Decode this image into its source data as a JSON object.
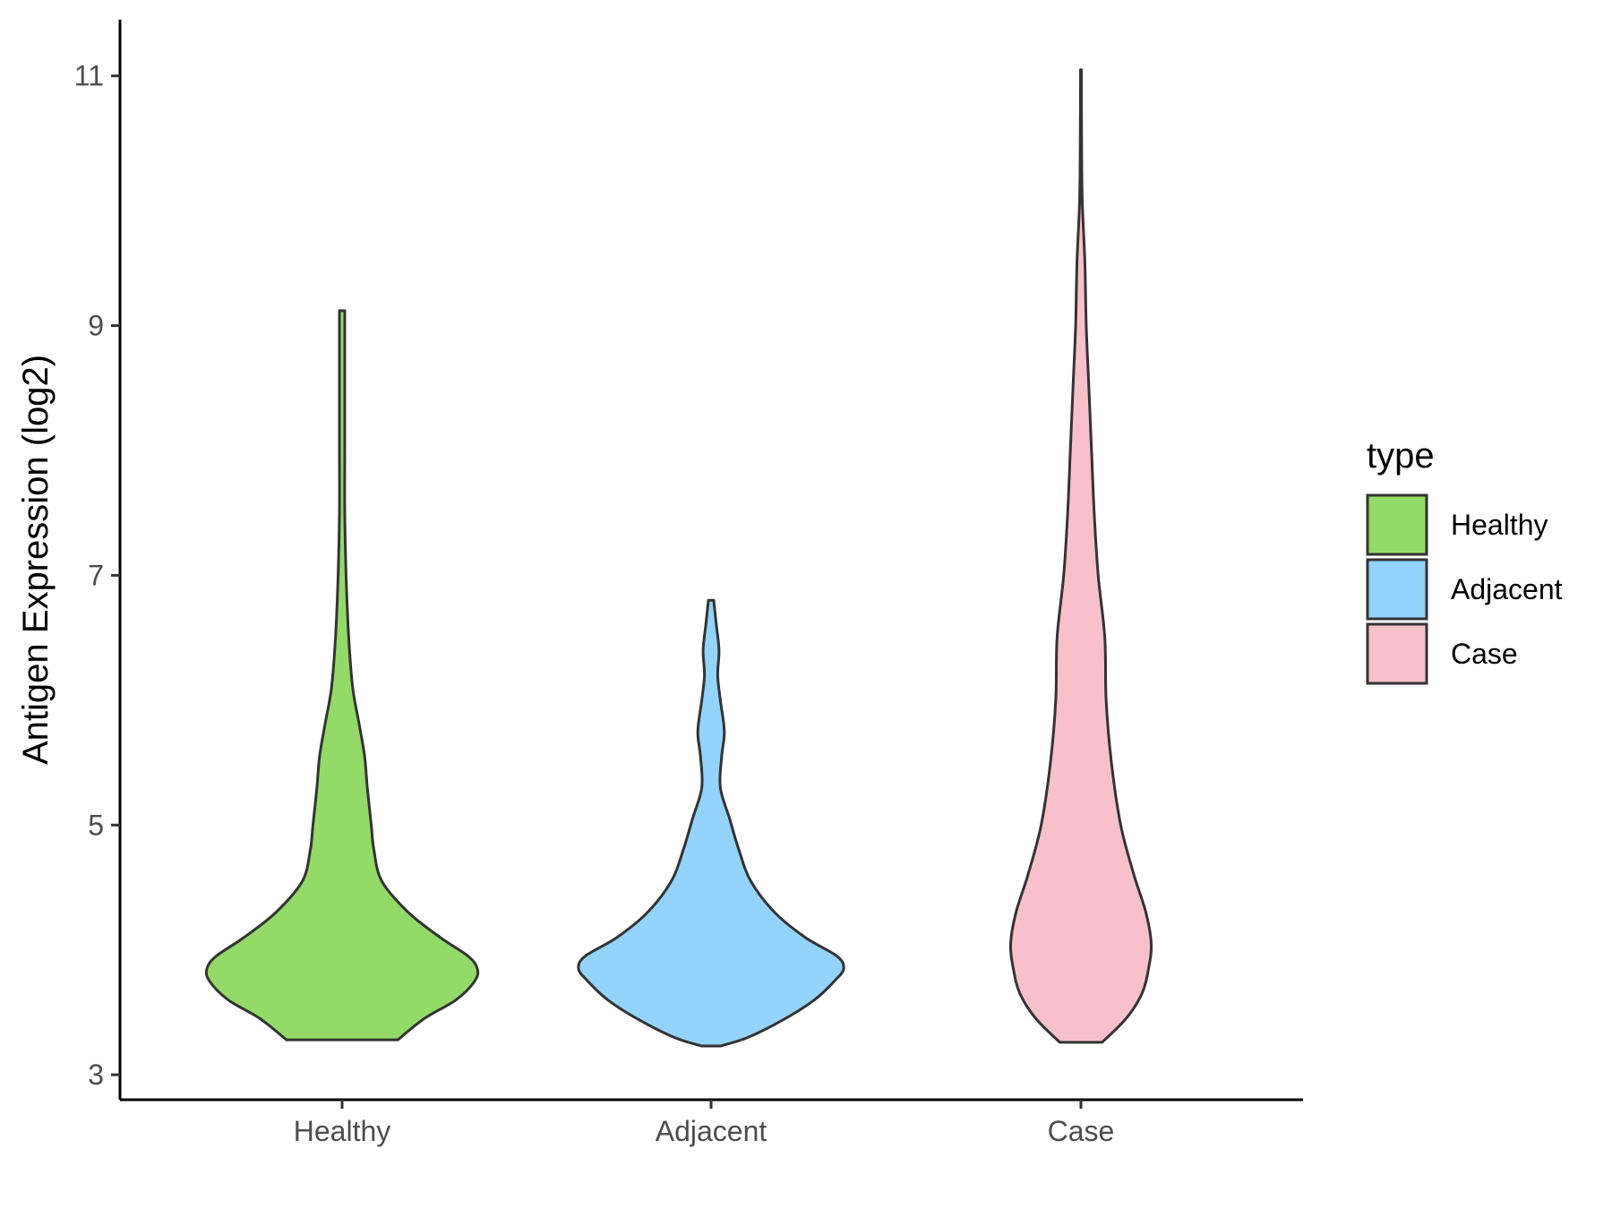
{
  "chart_data": {
    "type": "violin",
    "title": "",
    "xlabel": "",
    "ylabel": "Antigen Expression (log2)",
    "ylim": [
      2.8,
      11.45
    ],
    "yticks": [
      3,
      5,
      7,
      9,
      11
    ],
    "categories": [
      "Healthy",
      "Adjacent",
      "Case"
    ],
    "legend": {
      "title": "type",
      "position": "right",
      "entries": [
        "Healthy",
        "Adjacent",
        "Case"
      ]
    },
    "grid": false,
    "series": [
      {
        "name": "Healthy",
        "color": "#93da69",
        "min": 3.28,
        "max": 9.12,
        "density": [
          [
            3.28,
            0.42
          ],
          [
            3.45,
            0.62
          ],
          [
            3.6,
            0.86
          ],
          [
            3.75,
            1.0
          ],
          [
            3.85,
            1.02
          ],
          [
            3.95,
            0.95
          ],
          [
            4.1,
            0.74
          ],
          [
            4.3,
            0.5
          ],
          [
            4.55,
            0.3
          ],
          [
            4.8,
            0.24
          ],
          [
            5.0,
            0.22
          ],
          [
            5.3,
            0.19
          ],
          [
            5.55,
            0.17
          ],
          [
            5.8,
            0.13
          ],
          [
            6.1,
            0.08
          ],
          [
            6.5,
            0.05
          ],
          [
            7.0,
            0.03
          ],
          [
            7.5,
            0.02
          ],
          [
            8.0,
            0.02
          ],
          [
            8.5,
            0.02
          ],
          [
            9.0,
            0.02
          ],
          [
            9.12,
            0.02
          ]
        ]
      },
      {
        "name": "Adjacent",
        "color": "#93d3fc",
        "min": 3.23,
        "max": 6.8,
        "density": [
          [
            3.23,
            0.07
          ],
          [
            3.3,
            0.28
          ],
          [
            3.45,
            0.56
          ],
          [
            3.6,
            0.78
          ],
          [
            3.75,
            0.93
          ],
          [
            3.85,
            1.0
          ],
          [
            3.95,
            0.95
          ],
          [
            4.1,
            0.71
          ],
          [
            4.3,
            0.48
          ],
          [
            4.55,
            0.3
          ],
          [
            4.8,
            0.21
          ],
          [
            5.05,
            0.14
          ],
          [
            5.3,
            0.07
          ],
          [
            5.55,
            0.08
          ],
          [
            5.75,
            0.1
          ],
          [
            6.0,
            0.07
          ],
          [
            6.2,
            0.05
          ],
          [
            6.4,
            0.06
          ],
          [
            6.6,
            0.04
          ],
          [
            6.8,
            0.02
          ]
        ]
      },
      {
        "name": "Case",
        "color": "#f8c0cb",
        "min": 3.26,
        "max": 11.05,
        "density": [
          [
            3.26,
            0.16
          ],
          [
            3.45,
            0.34
          ],
          [
            3.65,
            0.46
          ],
          [
            3.85,
            0.51
          ],
          [
            4.05,
            0.53
          ],
          [
            4.3,
            0.49
          ],
          [
            4.6,
            0.4
          ],
          [
            5.0,
            0.3
          ],
          [
            5.5,
            0.23
          ],
          [
            6.0,
            0.19
          ],
          [
            6.5,
            0.18
          ],
          [
            7.0,
            0.13
          ],
          [
            7.5,
            0.1
          ],
          [
            8.0,
            0.08
          ],
          [
            8.5,
            0.06
          ],
          [
            9.0,
            0.04
          ],
          [
            9.5,
            0.03
          ],
          [
            10.0,
            0.01
          ],
          [
            10.5,
            0.005
          ],
          [
            11.05,
            0.003
          ]
        ]
      }
    ]
  }
}
